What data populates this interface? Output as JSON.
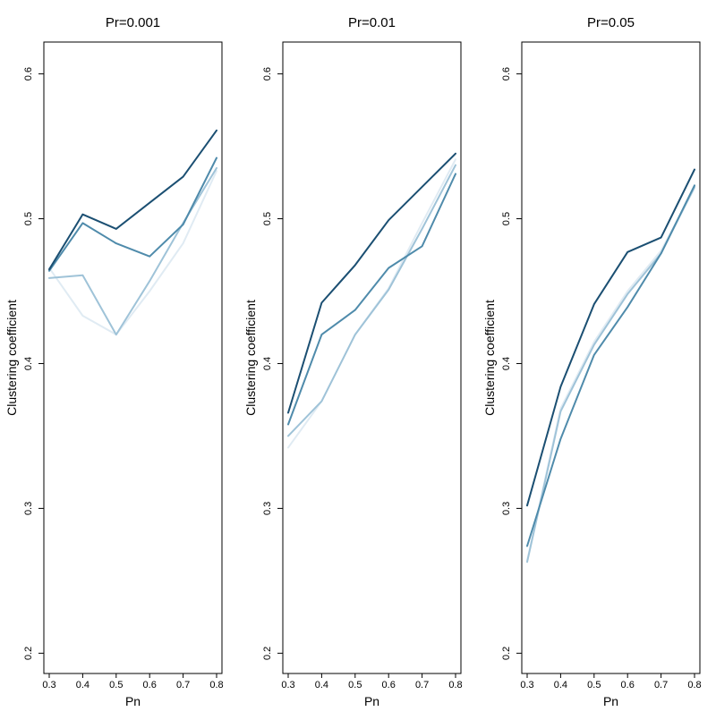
{
  "chart_data": [
    {
      "type": "line",
      "title": "Pr=0.001",
      "xlabel": "Pn",
      "ylabel": "Clustering coefficient",
      "x": [
        0.3,
        0.4,
        0.5,
        0.6,
        0.7,
        0.8
      ],
      "x_tick_labels": [
        "0.3",
        "0.4",
        "0.5",
        "0.6",
        "0.7",
        "0.8"
      ],
      "y_tick_labels": [
        "0.2",
        "0.3",
        "0.4",
        "0.5",
        "0.6"
      ],
      "xlim": [
        0.3,
        0.8
      ],
      "ylim": [
        0.2,
        0.6
      ],
      "grid": false,
      "series": [
        {
          "color": "#e0ebf3",
          "values": [
            0.466,
            0.433,
            0.42,
            0.45,
            0.483,
            0.533
          ]
        },
        {
          "color": "#9fc3d8",
          "values": [
            0.459,
            0.461,
            0.42,
            0.457,
            0.497,
            0.535
          ]
        },
        {
          "color": "#4f8bab",
          "values": [
            0.464,
            0.497,
            0.483,
            0.474,
            0.496,
            0.542
          ]
        },
        {
          "color": "#1b4f72",
          "values": [
            0.465,
            0.503,
            0.493,
            0.511,
            0.529,
            0.561
          ]
        }
      ]
    },
    {
      "type": "line",
      "title": "Pr=0.01",
      "xlabel": "Pn",
      "ylabel": "Clustering coefficient",
      "x": [
        0.3,
        0.4,
        0.5,
        0.6,
        0.7,
        0.8
      ],
      "x_tick_labels": [
        "0.3",
        "0.4",
        "0.5",
        "0.6",
        "0.7",
        "0.8"
      ],
      "y_tick_labels": [
        "0.2",
        "0.3",
        "0.4",
        "0.5",
        "0.6"
      ],
      "xlim": [
        0.3,
        0.8
      ],
      "ylim": [
        0.2,
        0.6
      ],
      "grid": false,
      "series": [
        {
          "color": "#e0ebf3",
          "values": [
            0.342,
            0.374,
            0.42,
            0.452,
            0.497,
            0.541
          ]
        },
        {
          "color": "#9fc3d8",
          "values": [
            0.35,
            0.374,
            0.42,
            0.451,
            0.493,
            0.537
          ]
        },
        {
          "color": "#4f8bab",
          "values": [
            0.358,
            0.42,
            0.437,
            0.466,
            0.481,
            0.531
          ]
        },
        {
          "color": "#1b4f72",
          "values": [
            0.366,
            0.442,
            0.468,
            0.499,
            0.522,
            0.545
          ]
        }
      ]
    },
    {
      "type": "line",
      "title": "Pr=0.05",
      "xlabel": "Pn",
      "ylabel": "Clustering coefficient",
      "x": [
        0.3,
        0.4,
        0.5,
        0.6,
        0.7,
        0.8
      ],
      "x_tick_labels": [
        "0.3",
        "0.4",
        "0.5",
        "0.6",
        "0.7",
        "0.8"
      ],
      "y_tick_labels": [
        "0.2",
        "0.3",
        "0.4",
        "0.5",
        "0.6"
      ],
      "xlim": [
        0.3,
        0.8
      ],
      "ylim": [
        0.2,
        0.6
      ],
      "grid": false,
      "series": [
        {
          "color": "#e0ebf3",
          "values": [
            0.264,
            0.369,
            0.415,
            0.45,
            0.478,
            0.521
          ]
        },
        {
          "color": "#9fc3d8",
          "values": [
            0.263,
            0.367,
            0.413,
            0.448,
            0.476,
            0.522
          ]
        },
        {
          "color": "#4f8bab",
          "values": [
            0.274,
            0.348,
            0.406,
            0.439,
            0.476,
            0.523
          ]
        },
        {
          "color": "#1b4f72",
          "values": [
            0.302,
            0.384,
            0.441,
            0.477,
            0.487,
            0.534
          ]
        }
      ]
    }
  ]
}
